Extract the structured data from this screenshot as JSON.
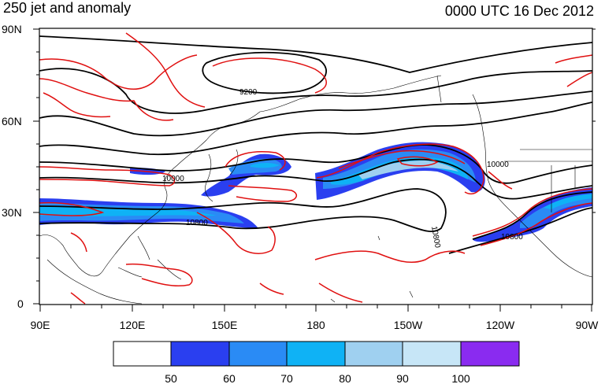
{
  "header": {
    "left_title": "250 jet and anomaly",
    "right_title": "0000 UTC 16 Dec 2012"
  },
  "axes": {
    "lat_ticks": [
      "90N",
      "60N",
      "30N",
      "0"
    ],
    "lon_ticks": [
      "90E",
      "120E",
      "150E",
      "180",
      "150W",
      "120W",
      "90W"
    ]
  },
  "contour_labels": [
    "9200",
    "10000",
    "10800",
    "10800",
    "10800",
    "10000",
    "10800"
  ],
  "colorbar": {
    "labels": [
      "50",
      "60",
      "70",
      "80",
      "90",
      "100"
    ],
    "colors": [
      "#ffffff",
      "#2a3ff0",
      "#2a8bf5",
      "#0fb2f5",
      "#9fd0f0",
      "#c7e6f7",
      "#8a2bf0"
    ]
  },
  "colors": {
    "height_contour": "#000000",
    "anomaly_contour": "#e01010",
    "coastline": "#000000"
  }
}
